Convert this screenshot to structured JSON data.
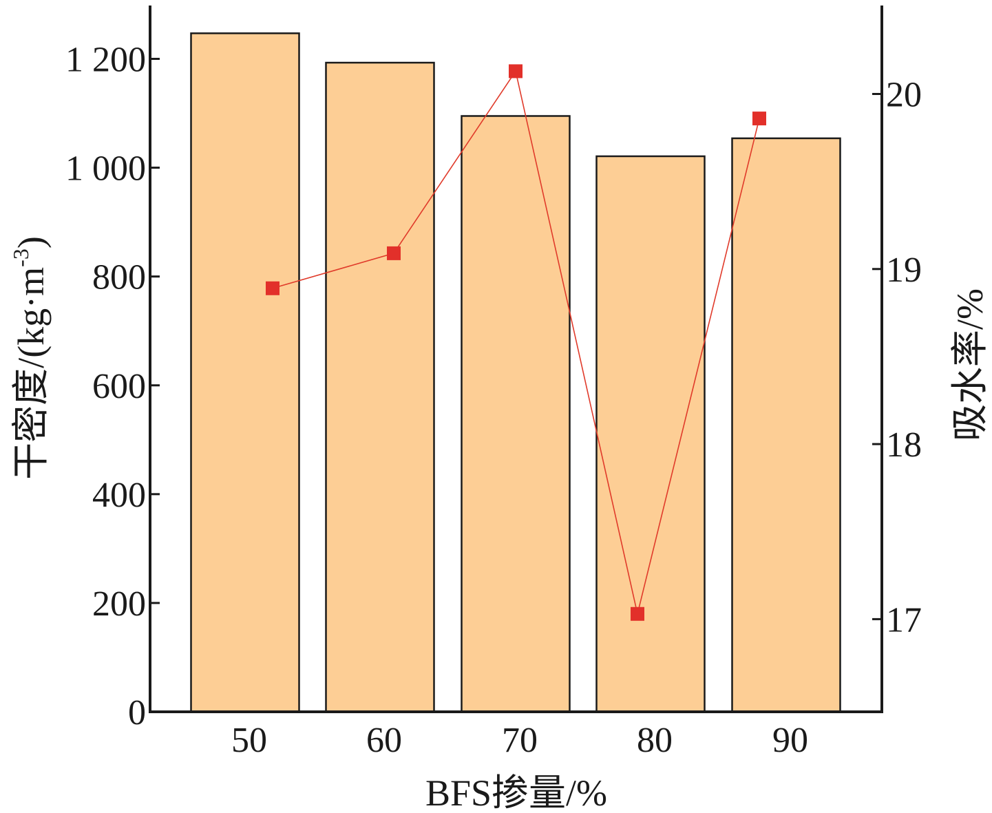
{
  "chart_data": {
    "type": "bar",
    "xlabel": "BFS掺量/%",
    "ylabel_left_main": "干密度/(kg·m",
    "ylabel_left_sup": "-3",
    "ylabel_left_close": ")",
    "ylabel_right": "吸水率/%",
    "categories": [
      "50",
      "60",
      "70",
      "80",
      "90"
    ],
    "left_axis": {
      "ylim": [
        0,
        1300
      ],
      "ticks": [
        0,
        200,
        400,
        600,
        800,
        1000,
        1200
      ],
      "tick_labels": [
        "0",
        "200",
        "400",
        "600",
        "800",
        "1 000",
        "1 200"
      ]
    },
    "right_axis": {
      "ylim": [
        16.5,
        20.5
      ],
      "ticks": [
        17,
        18,
        19,
        20
      ],
      "tick_labels": [
        "17",
        "18",
        "19",
        "20"
      ]
    },
    "series": [
      {
        "type": "bar",
        "axis": "left",
        "values": [
          1247,
          1193,
          1095,
          1021,
          1054
        ]
      },
      {
        "type": "line",
        "axis": "right",
        "values": [
          18.89,
          19.09,
          20.13,
          17.03,
          19.86
        ]
      }
    ],
    "colors": {
      "bar": "#fdce95",
      "line": "#e03a2a",
      "marker": "#e2302a",
      "axis": "#1a1a1a"
    }
  }
}
